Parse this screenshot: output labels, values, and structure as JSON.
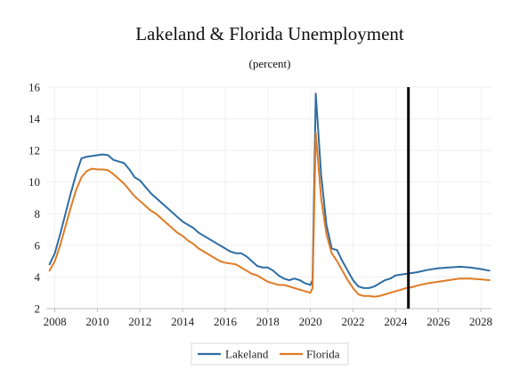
{
  "chart_data": {
    "type": "line",
    "title": "Lakeland & Florida Unemployment",
    "subtitle": "(percent)",
    "xlabel": "",
    "ylabel": "",
    "xlim": [
      2007.6,
      2028.5
    ],
    "ylim": [
      2,
      16
    ],
    "x_ticks": [
      2008,
      2010,
      2012,
      2014,
      2016,
      2018,
      2020,
      2022,
      2024,
      2026,
      2028
    ],
    "y_ticks": [
      2,
      4,
      6,
      8,
      10,
      12,
      14,
      16
    ],
    "grid": true,
    "legend": "bottom",
    "vline": {
      "x": 2024.6,
      "color": "#000000"
    },
    "series": [
      {
        "name": "Lakeland",
        "color": "#2e6da4",
        "x": [
          2007.75,
          2008,
          2008.25,
          2008.5,
          2008.75,
          2009,
          2009.25,
          2009.5,
          2009.75,
          2010,
          2010.25,
          2010.5,
          2010.75,
          2011,
          2011.25,
          2011.5,
          2011.75,
          2012,
          2012.25,
          2012.5,
          2012.75,
          2013,
          2013.25,
          2013.5,
          2013.75,
          2014,
          2014.25,
          2014.5,
          2014.75,
          2015,
          2015.25,
          2015.5,
          2015.75,
          2016,
          2016.25,
          2016.5,
          2016.75,
          2017,
          2017.25,
          2017.5,
          2017.75,
          2018,
          2018.25,
          2018.5,
          2018.75,
          2019,
          2019.25,
          2019.5,
          2019.75,
          2020,
          2020.1,
          2020.25,
          2020.5,
          2020.75,
          2021,
          2021.25,
          2021.5,
          2021.75,
          2022,
          2022.25,
          2022.5,
          2022.75,
          2023,
          2023.25,
          2023.5,
          2023.75,
          2024,
          2024.25,
          2024.5,
          2024.75,
          2025,
          2025.5,
          2026,
          2026.5,
          2027,
          2027.5,
          2028,
          2028.4
        ],
        "values": [
          4.8,
          5.5,
          6.7,
          8.0,
          9.3,
          10.5,
          11.5,
          11.6,
          11.65,
          11.7,
          11.75,
          11.7,
          11.4,
          11.3,
          11.2,
          10.8,
          10.3,
          10.1,
          9.7,
          9.3,
          9.0,
          8.7,
          8.4,
          8.1,
          7.8,
          7.5,
          7.3,
          7.1,
          6.8,
          6.6,
          6.4,
          6.2,
          6.0,
          5.8,
          5.6,
          5.5,
          5.5,
          5.3,
          5.0,
          4.7,
          4.6,
          4.6,
          4.4,
          4.1,
          3.9,
          3.8,
          3.9,
          3.8,
          3.6,
          3.5,
          3.8,
          15.6,
          10.5,
          7.3,
          5.8,
          5.7,
          5.0,
          4.4,
          3.8,
          3.4,
          3.3,
          3.3,
          3.4,
          3.6,
          3.8,
          3.9,
          4.1,
          4.15,
          4.2,
          4.25,
          4.3,
          4.45,
          4.55,
          4.6,
          4.65,
          4.6,
          4.5,
          4.4
        ]
      },
      {
        "name": "Florida",
        "color": "#e07b24",
        "x": [
          2007.75,
          2008,
          2008.25,
          2008.5,
          2008.75,
          2009,
          2009.25,
          2009.5,
          2009.75,
          2010,
          2010.25,
          2010.5,
          2010.75,
          2011,
          2011.25,
          2011.5,
          2011.75,
          2012,
          2012.25,
          2012.5,
          2012.75,
          2013,
          2013.25,
          2013.5,
          2013.75,
          2014,
          2014.25,
          2014.5,
          2014.75,
          2015,
          2015.25,
          2015.5,
          2015.75,
          2016,
          2016.25,
          2016.5,
          2016.75,
          2017,
          2017.25,
          2017.5,
          2017.75,
          2018,
          2018.25,
          2018.5,
          2018.75,
          2019,
          2019.25,
          2019.5,
          2019.75,
          2020,
          2020.1,
          2020.25,
          2020.5,
          2020.75,
          2021,
          2021.25,
          2021.5,
          2021.75,
          2022,
          2022.25,
          2022.5,
          2022.75,
          2023,
          2023.25,
          2023.5,
          2023.75,
          2024,
          2024.25,
          2024.5,
          2024.75,
          2025,
          2025.5,
          2026,
          2026.5,
          2027,
          2027.5,
          2028,
          2028.4
        ],
        "values": [
          4.4,
          5.0,
          6.0,
          7.2,
          8.4,
          9.5,
          10.3,
          10.7,
          10.85,
          10.8,
          10.8,
          10.75,
          10.5,
          10.2,
          9.9,
          9.5,
          9.1,
          8.8,
          8.5,
          8.2,
          8.0,
          7.7,
          7.4,
          7.1,
          6.8,
          6.6,
          6.3,
          6.1,
          5.8,
          5.6,
          5.4,
          5.2,
          5.0,
          4.9,
          4.85,
          4.8,
          4.6,
          4.4,
          4.2,
          4.1,
          3.9,
          3.7,
          3.6,
          3.5,
          3.5,
          3.4,
          3.3,
          3.2,
          3.1,
          3.0,
          3.3,
          13.1,
          9.0,
          6.7,
          5.5,
          5.0,
          4.4,
          3.8,
          3.3,
          2.9,
          2.8,
          2.8,
          2.75,
          2.8,
          2.9,
          3.0,
          3.1,
          3.2,
          3.3,
          3.35,
          3.45,
          3.6,
          3.7,
          3.8,
          3.9,
          3.9,
          3.85,
          3.8
        ]
      }
    ]
  }
}
